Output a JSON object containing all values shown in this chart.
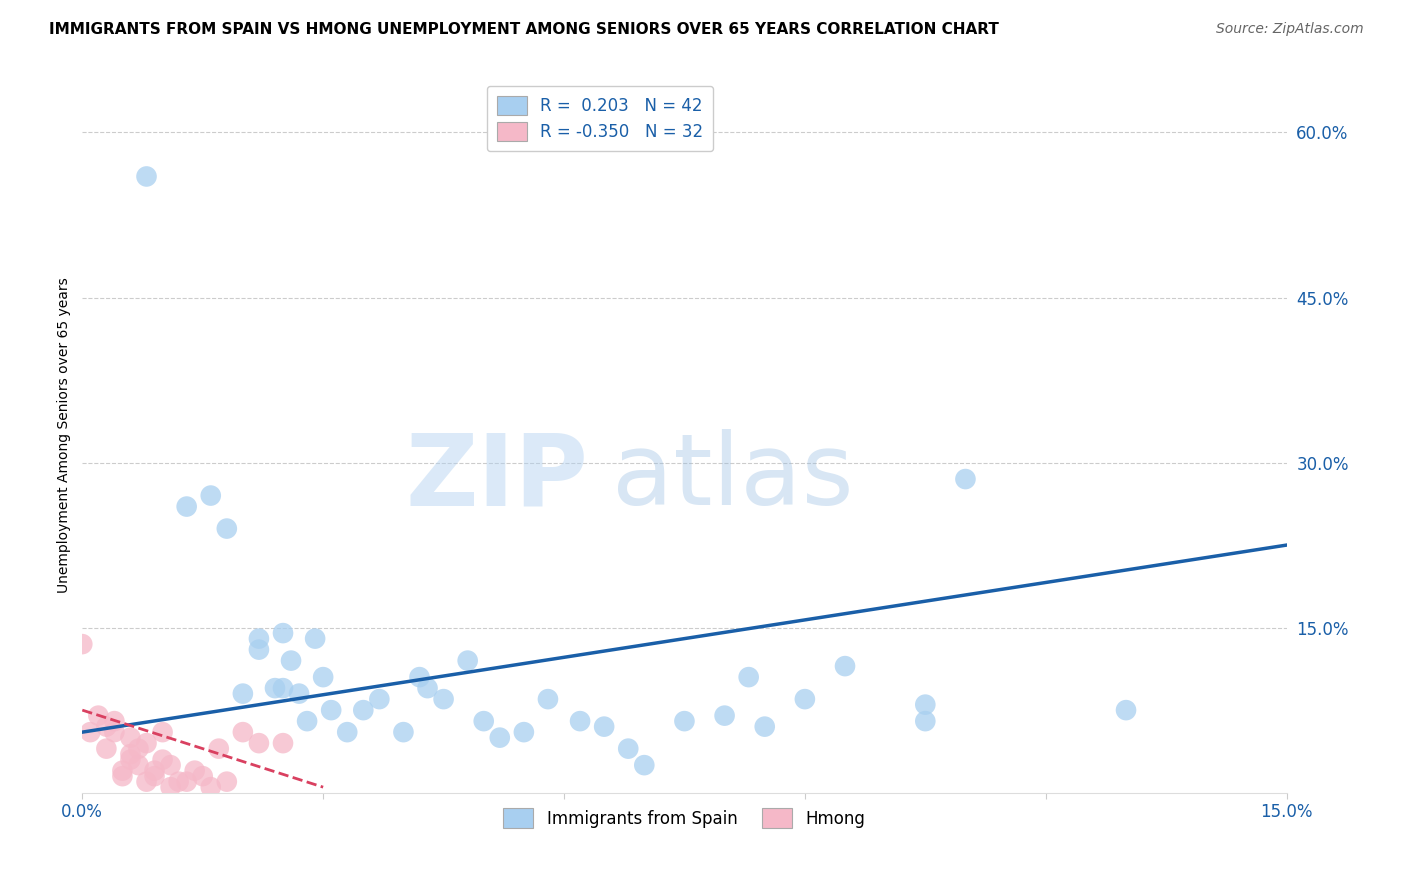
{
  "title": "IMMIGRANTS FROM SPAIN VS HMONG UNEMPLOYMENT AMONG SENIORS OVER 65 YEARS CORRELATION CHART",
  "source": "Source: ZipAtlas.com",
  "ylabel": "Unemployment Among Seniors over 65 years",
  "xlim": [
    0.0,
    0.15
  ],
  "ylim": [
    0.0,
    0.65
  ],
  "yticks_right": [
    0.15,
    0.3,
    0.45,
    0.6
  ],
  "ytick_labels_right": [
    "15.0%",
    "30.0%",
    "45.0%",
    "60.0%"
  ],
  "blue_color": "#A8CFF0",
  "pink_color": "#F5B8C8",
  "blue_line_color": "#1A5FA8",
  "pink_line_color": "#D94060",
  "legend_line1": "R =  0.203   N = 42",
  "legend_line2": "R = -0.350   N = 32",
  "legend_label_blue": "Immigrants from Spain",
  "legend_label_pink": "Hmong",
  "watermark_zip": "ZIP",
  "watermark_atlas": "atlas",
  "blue_x": [
    0.008,
    0.013,
    0.016,
    0.018,
    0.02,
    0.022,
    0.022,
    0.024,
    0.025,
    0.025,
    0.026,
    0.027,
    0.028,
    0.029,
    0.03,
    0.031,
    0.033,
    0.035,
    0.037,
    0.04,
    0.042,
    0.043,
    0.045,
    0.048,
    0.05,
    0.052,
    0.055,
    0.058,
    0.062,
    0.065,
    0.068,
    0.07,
    0.075,
    0.08,
    0.083,
    0.085,
    0.09,
    0.095,
    0.105,
    0.11,
    0.13,
    0.105
  ],
  "blue_y": [
    0.56,
    0.26,
    0.27,
    0.24,
    0.09,
    0.13,
    0.14,
    0.095,
    0.145,
    0.095,
    0.12,
    0.09,
    0.065,
    0.14,
    0.105,
    0.075,
    0.055,
    0.075,
    0.085,
    0.055,
    0.105,
    0.095,
    0.085,
    0.12,
    0.065,
    0.05,
    0.055,
    0.085,
    0.065,
    0.06,
    0.04,
    0.025,
    0.065,
    0.07,
    0.105,
    0.06,
    0.085,
    0.115,
    0.08,
    0.285,
    0.075,
    0.065
  ],
  "pink_x": [
    0.0,
    0.001,
    0.002,
    0.003,
    0.003,
    0.004,
    0.004,
    0.005,
    0.005,
    0.006,
    0.006,
    0.006,
    0.007,
    0.007,
    0.008,
    0.008,
    0.009,
    0.009,
    0.01,
    0.01,
    0.011,
    0.011,
    0.012,
    0.013,
    0.014,
    0.015,
    0.016,
    0.017,
    0.018,
    0.02,
    0.022,
    0.025
  ],
  "pink_y": [
    0.135,
    0.055,
    0.07,
    0.04,
    0.06,
    0.055,
    0.065,
    0.015,
    0.02,
    0.03,
    0.05,
    0.035,
    0.025,
    0.04,
    0.045,
    0.01,
    0.02,
    0.015,
    0.03,
    0.055,
    0.025,
    0.005,
    0.01,
    0.01,
    0.02,
    0.015,
    0.005,
    0.04,
    0.01,
    0.055,
    0.045,
    0.045
  ],
  "blue_trend": [
    0.0,
    0.15,
    0.055,
    0.225
  ],
  "pink_trend": [
    0.0,
    0.03,
    0.075,
    0.005
  ],
  "grid_color": "#CCCCCC",
  "background_color": "#FFFFFF",
  "title_fontsize": 11,
  "source_fontsize": 10,
  "axis_label_fontsize": 10,
  "tick_fontsize": 12
}
